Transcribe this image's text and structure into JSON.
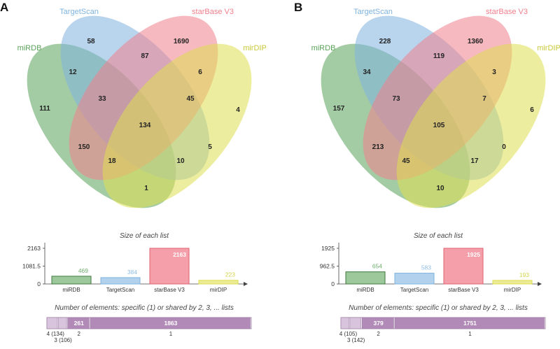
{
  "colors": {
    "mirdb": "#5aa35a",
    "targetscan": "#7fb3e0",
    "starbase": "#f07f8c",
    "mirdip": "#dede50",
    "bar_purple": "#b28ab8",
    "bar_light": "#d8c4dc",
    "axis": "#444444"
  },
  "chart_data": [
    {
      "type": "venn",
      "panel_label": "A",
      "sets": [
        "miRDB",
        "TargetScan",
        "starBase V3",
        "mirDIP"
      ],
      "regions": {
        "miRDB": 111,
        "TargetScan": 58,
        "starBase V3": 1690,
        "mirDIP": 4,
        "miRDB&TargetScan": 12,
        "TargetScan&starBase V3": 87,
        "starBase V3&mirDIP": 6,
        "miRDB&starBase V3": 150,
        "TargetScan&mirDIP": 5,
        "miRDB&mirDIP": 1,
        "miRDB&TargetScan&starBase V3": 33,
        "TargetScan&starBase V3&mirDIP": 45,
        "miRDB&starBase V3&mirDIP": 18,
        "miRDB&TargetScan&mirDIP": 10,
        "all": 134
      },
      "size_chart": {
        "type": "bar",
        "title": "Size of each list",
        "categories": [
          "miRDB",
          "TargetScan",
          "starBase V3",
          "mirDIP"
        ],
        "values": [
          469,
          384,
          2163,
          223
        ],
        "value_labels": [
          "469",
          "384",
          "2163",
          "223"
        ],
        "ylim": [
          0,
          2163
        ],
        "yticks": [
          "0",
          "1081.5",
          "2163"
        ]
      },
      "shared_chart": {
        "type": "bar",
        "title": "Number of elements: specific (1) or shared by 2, 3, ... lists",
        "segments": [
          {
            "level": "4",
            "value": 134,
            "label": ""
          },
          {
            "level": "3",
            "value": 106,
            "label": ""
          },
          {
            "level": "2",
            "value": 261,
            "label": "261"
          },
          {
            "level": "1",
            "value": 1863,
            "label": "1863"
          }
        ],
        "tick_labels": [
          "4 (134)",
          "3 (106)",
          "2",
          "1"
        ]
      }
    },
    {
      "type": "venn",
      "panel_label": "B",
      "sets": [
        "miRDB",
        "TargetScan",
        "starBase V3",
        "mirDIP"
      ],
      "regions": {
        "miRDB": 157,
        "TargetScan": 228,
        "starBase V3": 1360,
        "mirDIP": 6,
        "miRDB&TargetScan": 34,
        "TargetScan&starBase V3": 119,
        "starBase V3&mirDIP": 3,
        "miRDB&starBase V3": 213,
        "TargetScan&mirDIP": 0,
        "miRDB&mirDIP": 10,
        "miRDB&TargetScan&starBase V3": 73,
        "TargetScan&starBase V3&mirDIP": 7,
        "miRDB&starBase V3&mirDIP": 45,
        "miRDB&TargetScan&mirDIP": 17,
        "all": 105
      },
      "size_chart": {
        "type": "bar",
        "title": "Size of each list",
        "categories": [
          "miRDB",
          "TargetScan",
          "starBase V3",
          "mirDIP"
        ],
        "values": [
          654,
          583,
          1925,
          193
        ],
        "value_labels": [
          "654",
          "583",
          "1925",
          "193"
        ],
        "ylim": [
          0,
          1925
        ],
        "yticks": [
          "0",
          "962.5",
          "1925"
        ]
      },
      "shared_chart": {
        "type": "bar",
        "title": "Number of elements: specific (1) or shared by 2, 3, ... lists",
        "segments": [
          {
            "level": "4",
            "value": 105,
            "label": ""
          },
          {
            "level": "3",
            "value": 142,
            "label": ""
          },
          {
            "level": "2",
            "value": 379,
            "label": "379"
          },
          {
            "level": "1",
            "value": 1751,
            "label": "1751"
          }
        ],
        "tick_labels": [
          "4 (105)",
          "3 (142)",
          "2",
          "1"
        ]
      }
    }
  ]
}
